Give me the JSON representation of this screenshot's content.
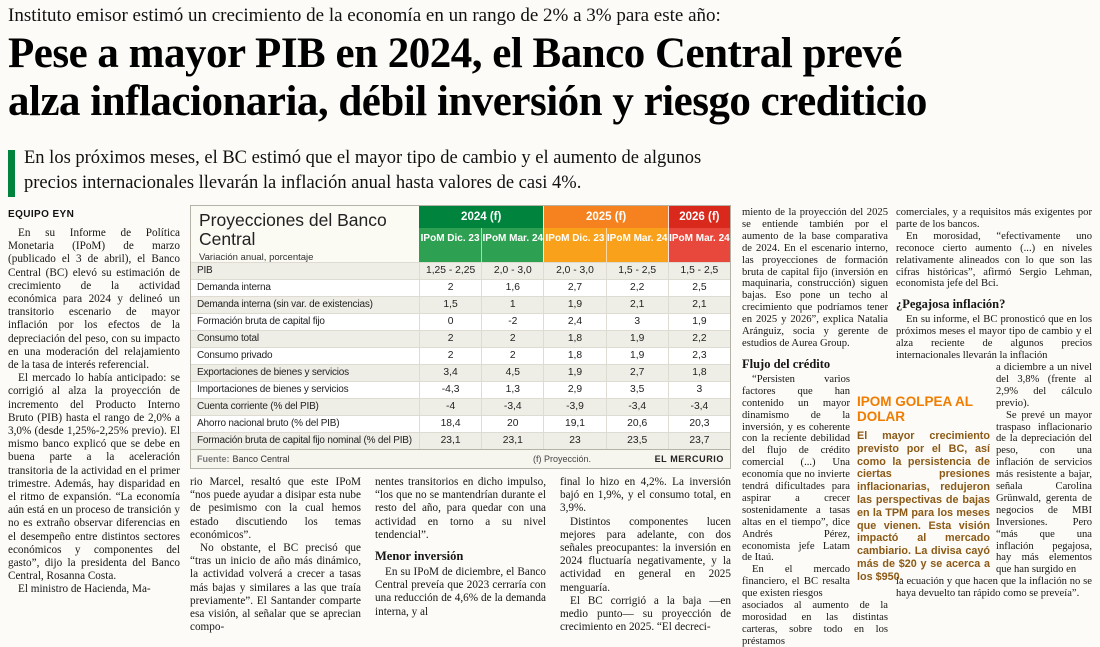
{
  "masthead": {
    "kicker": "Instituto emisor estimó un crecimiento de la economía en un rango de 2% a 3% para este año:",
    "headline_line1": "Pese a mayor PIB en 2024, el Banco Central prevé",
    "headline_line2": "alza inflacionaria, débil inversión y riesgo crediticio",
    "deck": "En los próximos meses, el BC estimó que el mayor tipo de cambio y el aumento de algunos precios internacionales llevarán la inflación anual hasta valores de casi 4%.",
    "byline": "EQUIPO EYN",
    "accent_green": "#00843D"
  },
  "table": {
    "title": "Proyecciones del Banco Central",
    "subtitle": "Variación anual, porcentaje",
    "groups": [
      {
        "label": "2024 (f)",
        "color": "#00843D",
        "subcolor": "#2EA052",
        "cols": [
          "IPoM Dic. 23",
          "IPoM Mar. 24"
        ]
      },
      {
        "label": "2025 (f)",
        "color": "#F5821F",
        "subcolor": "#F9A11B",
        "cols": [
          "IPoM Dic. 23",
          "IPoM Mar. 24"
        ]
      },
      {
        "label": "2026 (f)",
        "color": "#D9281C",
        "subcolor": "#E8473B",
        "cols": [
          "IPoM Mar. 24"
        ]
      }
    ],
    "rows": [
      {
        "label": "PIB",
        "values": [
          "1,25 - 2,25",
          "2,0 - 3,0",
          "2,0 - 3,0",
          "1,5 - 2,5",
          "1,5 - 2,5"
        ]
      },
      {
        "label": "Demanda interna",
        "values": [
          "2",
          "1,6",
          "2,7",
          "2,2",
          "2,5"
        ]
      },
      {
        "label": "Demanda interna (sin var. de existencias)",
        "values": [
          "1,5",
          "1",
          "1,9",
          "2,1",
          "2,1"
        ]
      },
      {
        "label": "Formación bruta de capital fijo",
        "values": [
          "0",
          "-2",
          "2,4",
          "3",
          "1,9"
        ]
      },
      {
        "label": "Consumo total",
        "values": [
          "2",
          "2",
          "1,8",
          "1,9",
          "2,2"
        ]
      },
      {
        "label": "Consumo privado",
        "values": [
          "2",
          "2",
          "1,8",
          "1,9",
          "2,3"
        ]
      },
      {
        "label": "Exportaciones de bienes y servicios",
        "values": [
          "3,4",
          "4,5",
          "1,9",
          "2,7",
          "1,8"
        ]
      },
      {
        "label": "Importaciones de bienes y servicios",
        "values": [
          "-4,3",
          "1,3",
          "2,9",
          "3,5",
          "3"
        ]
      },
      {
        "label": "Cuenta corriente (% del PIB)",
        "values": [
          "-4",
          "-3,4",
          "-3,9",
          "-3,4",
          "-3,4"
        ]
      },
      {
        "label": "Ahorro nacional bruto (% del PIB)",
        "values": [
          "18,4",
          "20",
          "19,1",
          "20,6",
          "20,3"
        ]
      },
      {
        "label": "Formación bruta de capital fijo nominal (% del PIB)",
        "values": [
          "23,1",
          "23,1",
          "23",
          "23,5",
          "23,7"
        ]
      }
    ],
    "source_label": "Fuente:",
    "source": "Banco Central",
    "note": "(f) Proyección.",
    "credit": "EL MERCURIO"
  },
  "body": {
    "col1": [
      "En su Informe de Política Monetaria (IPoM) de marzo (publicado el 3 de abril), el Banco Central (BC) elevó su estimación de crecimiento de la actividad económica para 2024 y delineó un transitorio escenario de mayor inflación por los efectos de la depreciación del peso, con su impacto en una moderación del relajamiento de la tasa de interés referencial.",
      "El mercado lo había anticipado: se corrigió al alza la proyección de incremento del Producto Interno Bruto (PIB) hasta el rango de 2,0% a 3,0% (desde 1,25%-2,25% previo). El mismo banco explicó que se debe en buena parte a la aceleración transitoria de la actividad en el primer trimestre. Además, hay disparidad en el ritmo de expansión. “La economía aún está en un proceso de transición y no es extraño observar diferencias en el desempeño entre distintos sectores económicos y componentes del gasto”, dijo la presidenta del Banco Central, Rosanna Costa.",
      "El ministro de Hacienda, Ma-"
    ],
    "col2": [
      "rio Marcel, resaltó que este IPoM “nos puede ayudar a disipar esta nube de pesimismo con la cual hemos estado discutiendo los temas económicos”.",
      "No obstante, el BC precisó que “tras un inicio de año más dinámico, la actividad volverá a crecer a tasas más bajas y similares a las que traía previamente”. El Santander comparte esa visión, al señalar que se aprecian compo-"
    ],
    "col3": {
      "p1": "nentes transitorios en dicho impulso, “los que no se mantendrían durante el resto del año, para quedar con una actividad en torno a su nivel tendencial”.",
      "subhead": "Menor inversión",
      "p2": "En su IPoM de diciembre, el Banco Central preveía que 2023 cerraría con una reducción de 4,6% de la demanda interna, y al"
    },
    "col4": [
      "final lo hizo en 4,2%. La inversión bajó en 1,9%, y el consumo total, en 3,9%.",
      "Distintos componentes lucen mejores para adelante, con dos señales preocupantes: la inversión en 2024 fluctuaría negativamente, y la actividad en general en 2025 menguaría.",
      "El BC corrigió a la baja —en medio punto— su proyección de crecimiento en 2025. “El decreci-"
    ],
    "col5": {
      "p1": "miento de la proyección del 2025 se entiende también por el aumento de la base comparativa de 2024. En el escenario interno, las proyecciones de formación bruta de capital fijo (inversión en maquinaria, construcción) siguen bajas. Eso pone un techo al crecimiento que podríamos tener en 2025 y 2026”, explica Natalia Aránguiz, socia y gerente de estudios de Aurea Group.",
      "subhead": "Flujo del crédito",
      "p2": "“Persisten varios factores que han contenido un mayor dinamismo de la inversión, y es coherente con la reciente debilidad del flujo de crédito comercial (...) Una economía que no invierte tendrá dificultades para aspirar a crecer sostenidamente a tasas altas en el tiempo”, dice Andrés Pérez, economista jefe Latam de Itaú.",
      "p3": "En el mercado financiero, el BC resalta que existen riesgos",
      "p3_tail": "asociados al aumento de la morosidad en las distintas carteras, sobre todo en los préstamos"
    },
    "col6": {
      "p1": "comerciales, y a requisitos más exigentes por parte de los bancos.",
      "p2": "En morosidad, “efectivamente uno reconoce cierto aumento (...) en niveles relativamente alineados con lo que son las cifras históricas”, afirmó Sergio Lehman, economista jefe del Bci.",
      "subhead": "¿Pegajosa inflación?",
      "p3": "En su informe, el BC pronosticó que en los próximos meses el mayor tipo de cambio y el alza reciente de algunos precios internacionales llevarán la inflación",
      "p4": "a diciembre a un nivel del 3,8% (frente al 2,9% del cálculo previo).",
      "p5": "Se prevé un mayor traspaso inflacionario de la depreciación del peso, con una inflación de servicios más resistente a bajar, señala Carolina Grünwald, gerenta de negocios de MBI Inversiones. Pero “más que una inflación pegajosa, hay más elementos que han surgido en",
      "p6": "la ecuación y que hacen que la inflación no se haya devuelto tan rápido como se preveía”."
    }
  },
  "highlight_box": {
    "title": "IPOM GOLPEA AL DOLAR",
    "body": "El mayor crecimiento previsto por el BC, así como la persistencia de ciertas presiones inflacionarias, redujeron las perspectivas de bajas en la TPM para los meses que vienen. Esta visión impactó al mercado cambiario. La divisa cayó más de $20 y se acerca a los $950.",
    "accent_color": "#f07c00"
  }
}
